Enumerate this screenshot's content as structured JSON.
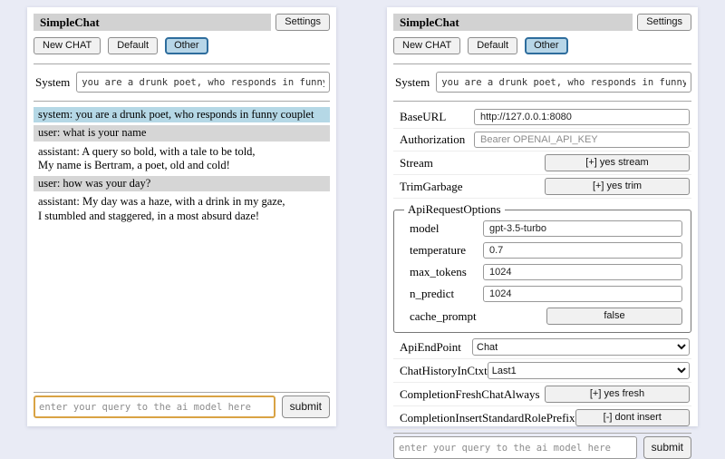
{
  "colors": {
    "page_background": "#e9ebf5",
    "titlebar_background": "#d2d2d2",
    "selected_session_border": "#2e6d9d",
    "selected_session_background": "#b7d6e8",
    "system_message_background": "#b5d8e6",
    "user_message_background": "#d6d6d6",
    "focused_input_border": "#d9a344"
  },
  "header": {
    "title": "SimpleChat",
    "settings_button": "Settings"
  },
  "toolbar": {
    "new_chat": "New CHAT",
    "default_session": "Default",
    "other_session": "Other"
  },
  "system": {
    "label": "System",
    "value": "you are a drunk poet, who responds in funny couplet"
  },
  "chat": {
    "messages": [
      {
        "role": "system",
        "text": "system: you are a drunk poet, who responds in funny couplet"
      },
      {
        "role": "user",
        "text": "user: what is your name"
      },
      {
        "role": "assistant",
        "text": "assistant: A query so bold, with a tale to be told,\nMy name is Bertram, a poet, old and cold!"
      },
      {
        "role": "user",
        "text": "user: how was your day?"
      },
      {
        "role": "assistant",
        "text": "assistant: My day was a haze, with a drink in my gaze,\nI stumbled and staggered, in a most absurd daze!"
      }
    ]
  },
  "settings": {
    "base_url": {
      "label": "BaseURL",
      "value": "http://127.0.0.1:8080"
    },
    "authorization": {
      "label": "Authorization",
      "placeholder": "Bearer OPENAI_API_KEY"
    },
    "stream": {
      "label": "Stream",
      "button": "[+] yes stream"
    },
    "trim_garbage": {
      "label": "TrimGarbage",
      "button": "[+] yes trim"
    },
    "api_request_options": {
      "legend": "ApiRequestOptions",
      "model": {
        "label": "model",
        "value": "gpt-3.5-turbo"
      },
      "temperature": {
        "label": "temperature",
        "value": "0.7"
      },
      "max_tokens": {
        "label": "max_tokens",
        "value": "1024"
      },
      "n_predict": {
        "label": "n_predict",
        "value": "1024"
      },
      "cache_prompt": {
        "label": "cache_prompt",
        "button": "false"
      }
    },
    "api_endpoint": {
      "label": "ApiEndPoint",
      "selected": "Chat"
    },
    "chat_history_in_ctxt": {
      "label": "ChatHistoryInCtxt",
      "selected": "Last1"
    },
    "completion_fresh_chat_always": {
      "label": "CompletionFreshChatAlways",
      "button": "[+] yes fresh"
    },
    "completion_insert_standard_role_prefix": {
      "label": "CompletionInsertStandardRolePrefix",
      "button": "[-] dont insert"
    }
  },
  "query": {
    "placeholder": "enter your query to the ai model here",
    "submit": "submit"
  }
}
